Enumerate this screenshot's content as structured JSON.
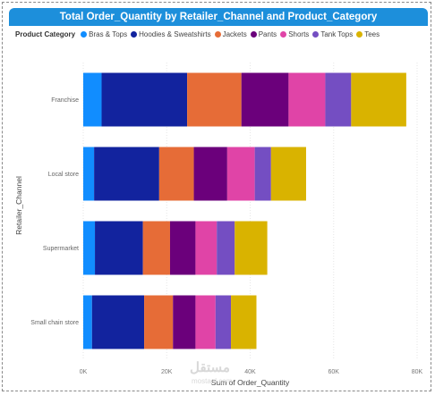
{
  "chart_data": {
    "type": "bar",
    "orientation": "horizontal",
    "stacked": true,
    "title": "Total Order_Quantity by Retailer_Channel and Product_Category",
    "xlabel": "Sum of Order_Quantity",
    "ylabel": "Retailer_Channel",
    "legend_title": "Product Category",
    "legend_position": "top-left",
    "grid": true,
    "xlim": [
      0,
      80000
    ],
    "xticks": [
      {
        "value": 0,
        "label": "0K"
      },
      {
        "value": 20000,
        "label": "20K"
      },
      {
        "value": 40000,
        "label": "40K"
      },
      {
        "value": 60000,
        "label": "60K"
      },
      {
        "value": 80000,
        "label": "80K"
      }
    ],
    "categories": [
      "Franchise",
      "Local store",
      "Supermarket",
      "Small chain store"
    ],
    "series": [
      {
        "name": "Bras & Tops",
        "color": "#118DFF",
        "values": [
          4400,
          2600,
          2800,
          2100
        ]
      },
      {
        "name": "Hoodies & Sweatshirts",
        "color": "#12239E",
        "values": [
          20500,
          15600,
          11500,
          12500
        ]
      },
      {
        "name": "Jackets",
        "color": "#E66C37",
        "values": [
          13000,
          8300,
          6500,
          6900
        ]
      },
      {
        "name": "Pants",
        "color": "#6B007B",
        "values": [
          11300,
          8000,
          6100,
          5400
        ]
      },
      {
        "name": "Shorts",
        "color": "#E044A7",
        "values": [
          8800,
          6600,
          5100,
          4800
        ]
      },
      {
        "name": "Tank Tops",
        "color": "#744EC2",
        "values": [
          6200,
          3900,
          4300,
          3700
        ]
      },
      {
        "name": "Tees",
        "color": "#D9B300",
        "values": [
          13200,
          8400,
          7800,
          6100
        ]
      }
    ]
  },
  "watermark": {
    "text": "مستقل",
    "sub": "mostaql.com"
  }
}
